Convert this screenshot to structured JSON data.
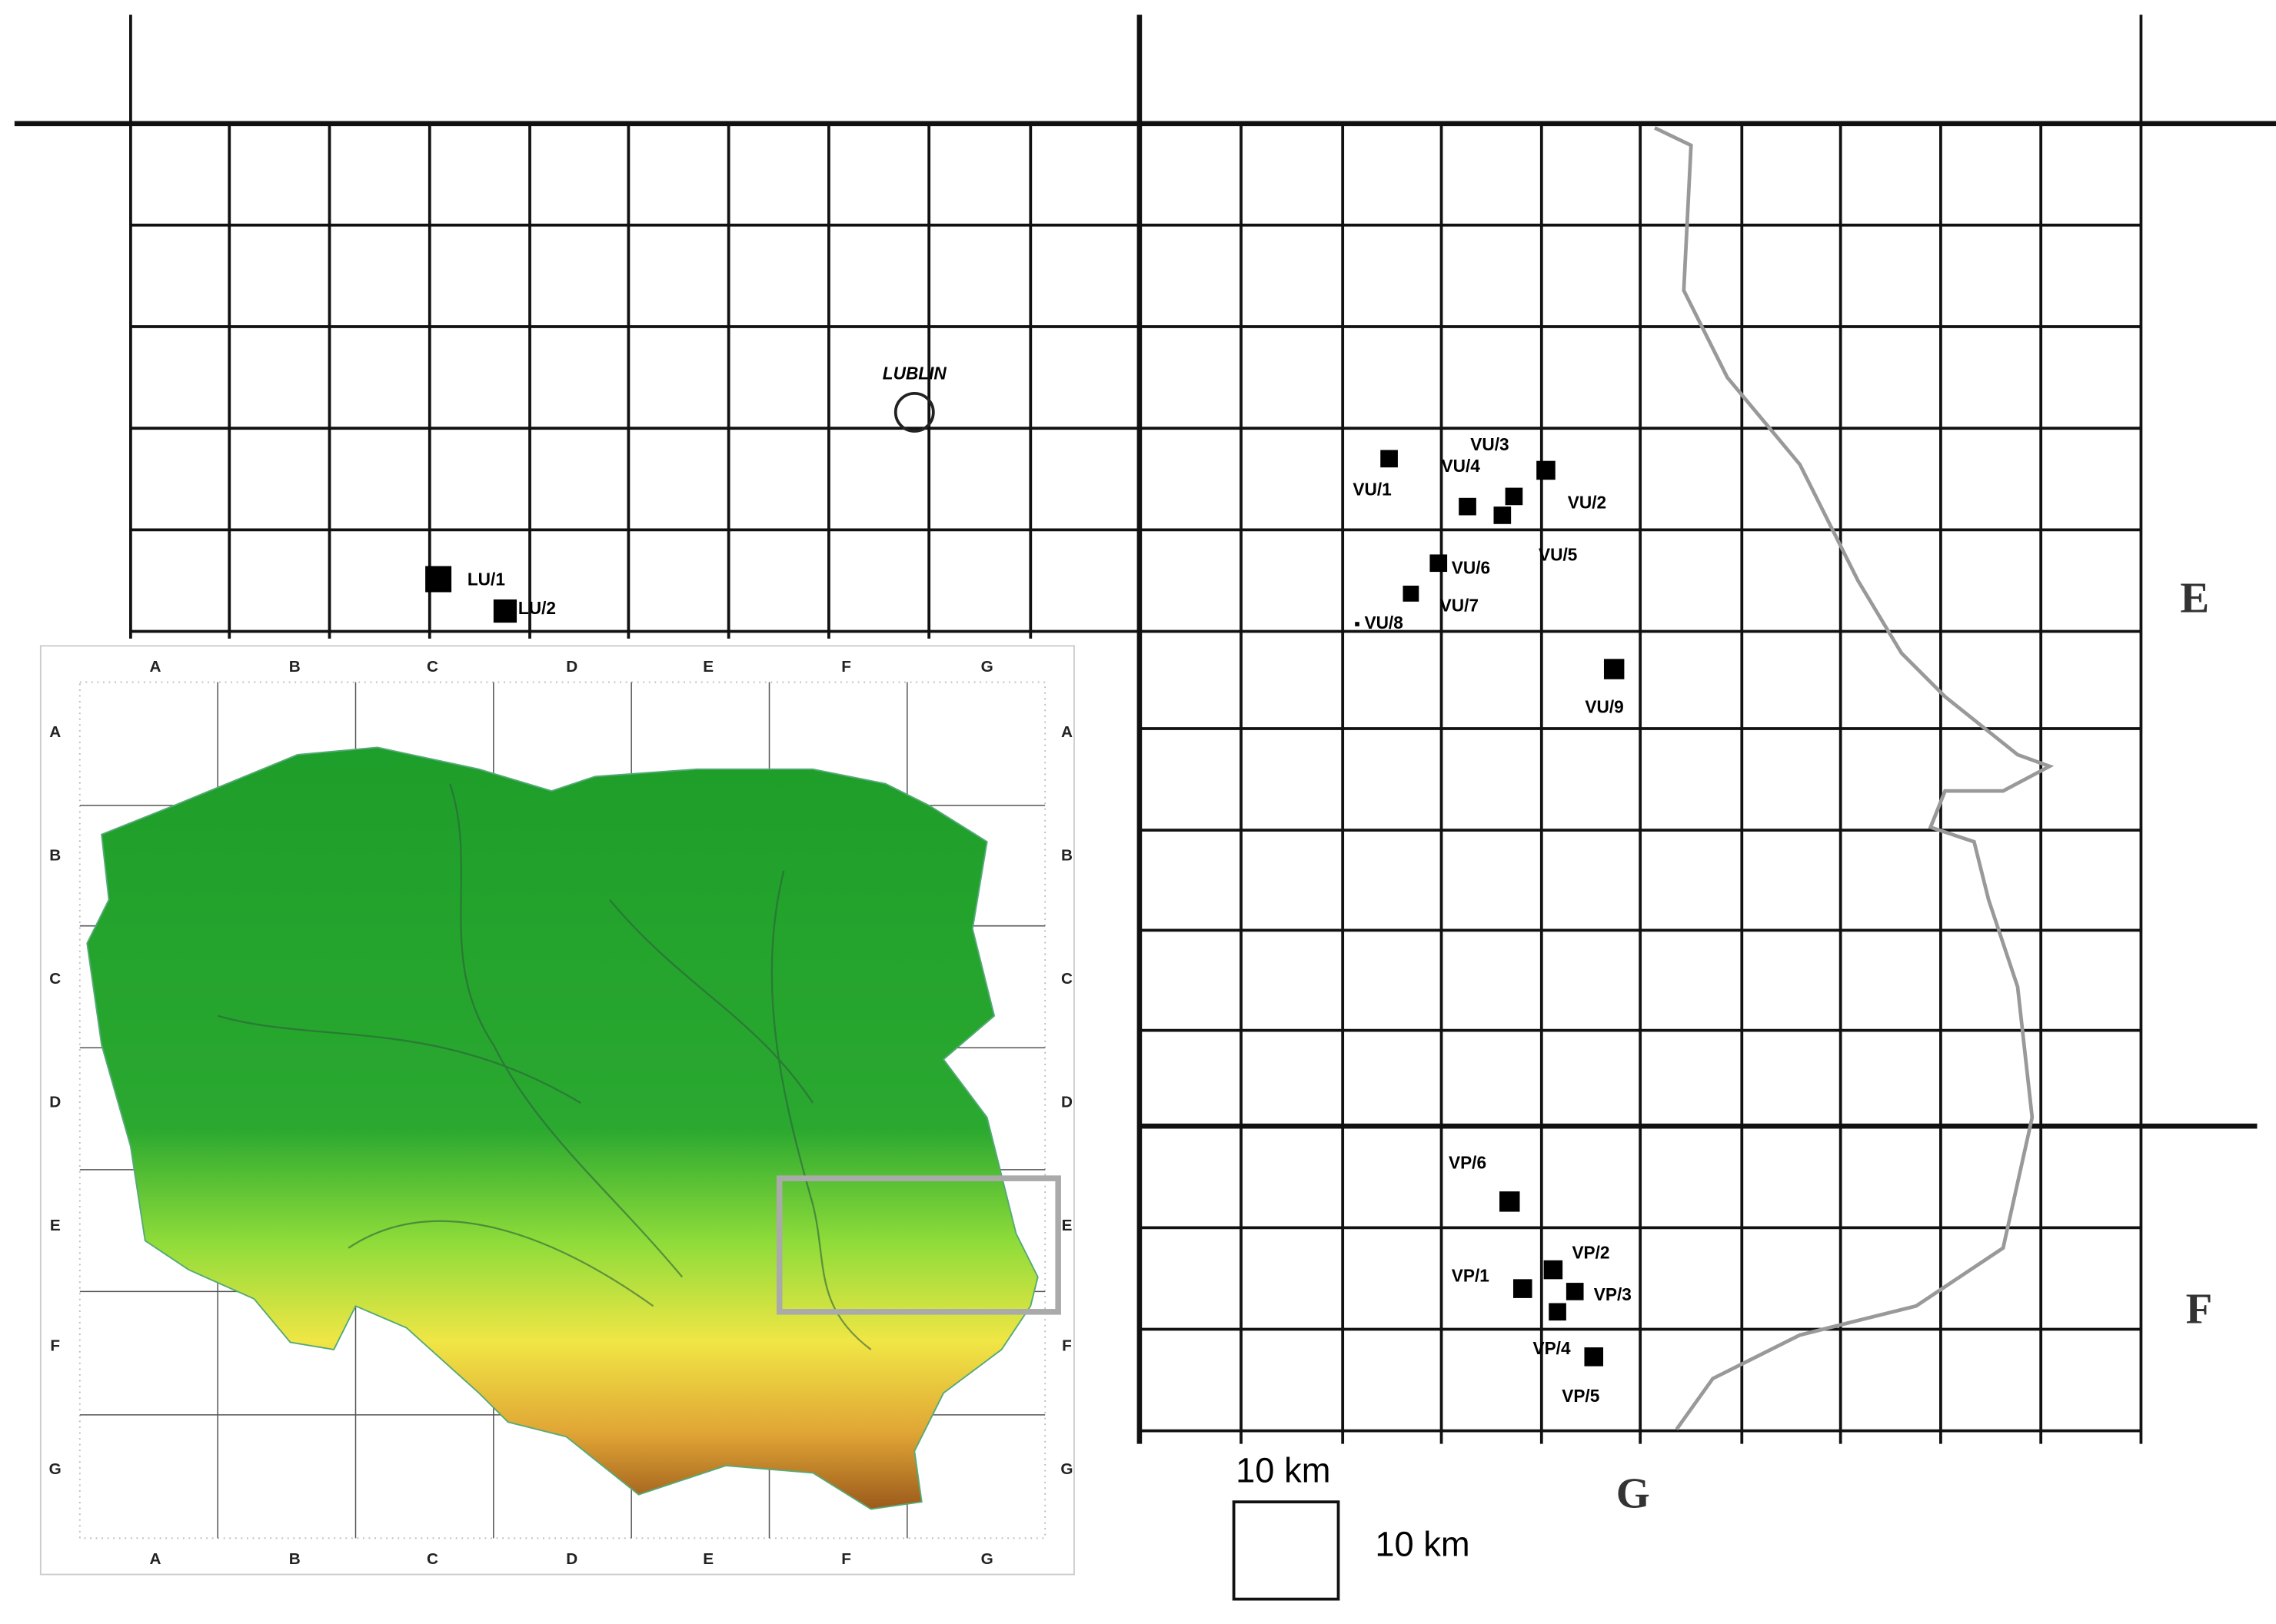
{
  "map": {
    "place": "LUBLIN",
    "sites": [
      "LU/1",
      "LU/2",
      "VU/1",
      "VU/2",
      "VU/3",
      "VU/4",
      "VU/5",
      "VU/6",
      "VU/7",
      "VU/8",
      "VU/9",
      "VP/1",
      "VP/2",
      "VP/3",
      "VP/4",
      "VP/5",
      "VP/6"
    ],
    "zone_labels": [
      "E",
      "F",
      "G"
    ],
    "inset": {
      "columns": [
        "A",
        "B",
        "C",
        "D",
        "E",
        "F",
        "G"
      ],
      "rows": [
        "A",
        "B",
        "C",
        "D",
        "E",
        "F",
        "G"
      ]
    },
    "scale": {
      "width": "10 km",
      "height": "10 km"
    }
  }
}
